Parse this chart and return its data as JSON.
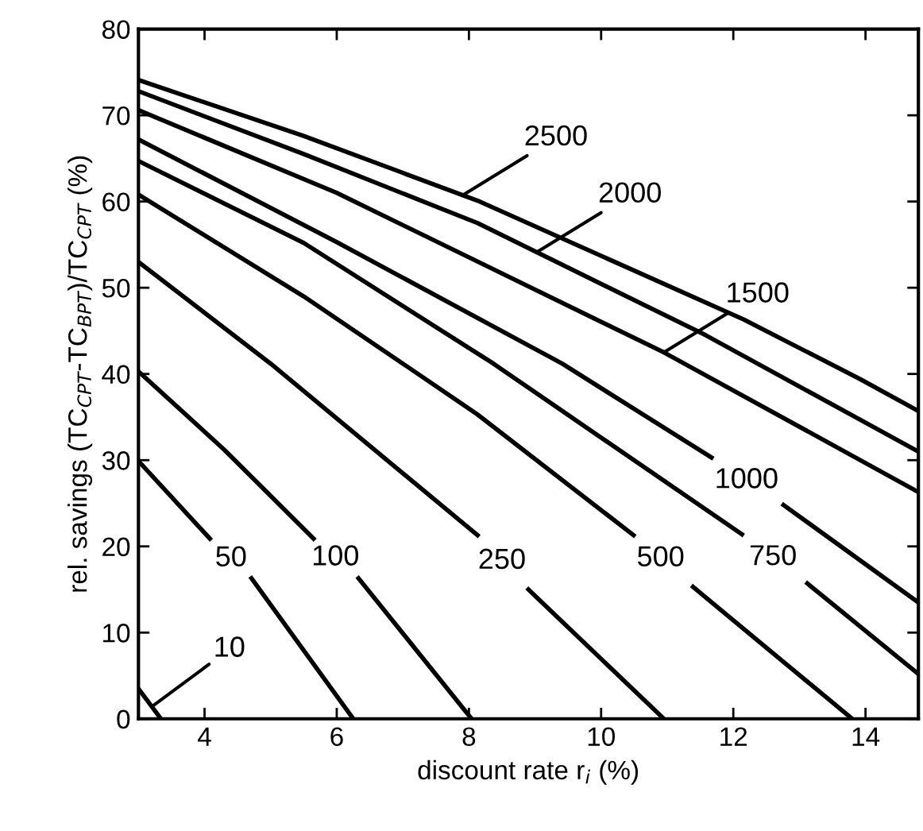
{
  "chart_data": {
    "type": "line",
    "xlabel": "discount rate r$_{i}$ (%)",
    "ylabel": "rel. savings (TC$_{CPT}$-TC$_{BPT}$)/TC$_{CPT}$ (%)",
    "xlim": [
      3,
      14.8
    ],
    "ylim": [
      0,
      80
    ],
    "xticks": [
      4,
      6,
      8,
      10,
      12,
      14
    ],
    "yticks": [
      0,
      10,
      20,
      30,
      40,
      50,
      60,
      70,
      80
    ],
    "grid": false,
    "legend": false,
    "marker": "none",
    "line_style": "solid",
    "series": [
      {
        "color": "#000000",
        "x": [
          3,
          3.34
        ],
        "values": [
          3.5,
          0
        ]
      },
      {
        "name": "50",
        "color": "#000000",
        "x": [
          3,
          4.08,
          4.4,
          4.71,
          6.25
        ],
        "values": [
          29.9,
          20.9,
          null,
          16.3,
          0
        ]
      },
      {
        "name": "100",
        "color": "#000000",
        "x": [
          3,
          4.3,
          5.65,
          5.98,
          6.33,
          8.04
        ],
        "values": [
          40.3,
          31.2,
          20.9,
          null,
          16.3,
          0
        ]
      },
      {
        "name": "250",
        "color": "#000000",
        "x": [
          3,
          5,
          8.13,
          8.5,
          8.9,
          10.95
        ],
        "values": [
          53.0,
          41.2,
          21.3,
          null,
          15.0,
          0
        ]
      },
      {
        "name": "500",
        "color": "#000000",
        "x": [
          3,
          5.5,
          7,
          8.13,
          10.49,
          10.9,
          11.39,
          13.8
        ],
        "values": [
          60.8,
          49.0,
          41.2,
          35.3,
          21.3,
          null,
          15.3,
          0
        ]
      },
      {
        "name": "750",
        "color": "#000000",
        "x": [
          3,
          5.5,
          8.37,
          12.13,
          12.6,
          13.12,
          14.8
        ],
        "values": [
          64.7,
          55.2,
          41.2,
          21.4,
          null,
          15.7,
          5.2
        ]
      },
      {
        "name": "1000",
        "color": "#000000",
        "x": [
          3,
          6,
          9.41,
          11.67,
          12.2,
          12.76,
          14.8
        ],
        "values": [
          67.2,
          55.3,
          41.2,
          30.3,
          null,
          24.8,
          13.5
        ]
      },
      {
        "color": "#000000",
        "x": [
          3,
          6,
          10.95,
          14.8
        ],
        "values": [
          70.6,
          61.0,
          42.5,
          26.3
        ]
      },
      {
        "color": "#000000",
        "x": [
          3,
          5.5,
          8.13,
          11.58,
          14.8
        ],
        "values": [
          72.8,
          65.5,
          57.5,
          44.5,
          31.0
        ]
      },
      {
        "color": "#000000",
        "x": [
          3,
          5.5,
          8.13,
          12.16,
          13.92,
          14.8
        ],
        "values": [
          74.1,
          67.6,
          60.1,
          46.3,
          39.4,
          35.7
        ]
      }
    ],
    "annotations": [
      {
        "text": "10",
        "x": 3.2,
        "y": 1.4
      },
      {
        "text": "1500",
        "x": 10.95,
        "y": 42.5
      },
      {
        "text": "2000",
        "x": 9.02,
        "y": 54.1
      },
      {
        "text": "2500",
        "x": 7.9,
        "y": 60.7
      }
    ]
  }
}
